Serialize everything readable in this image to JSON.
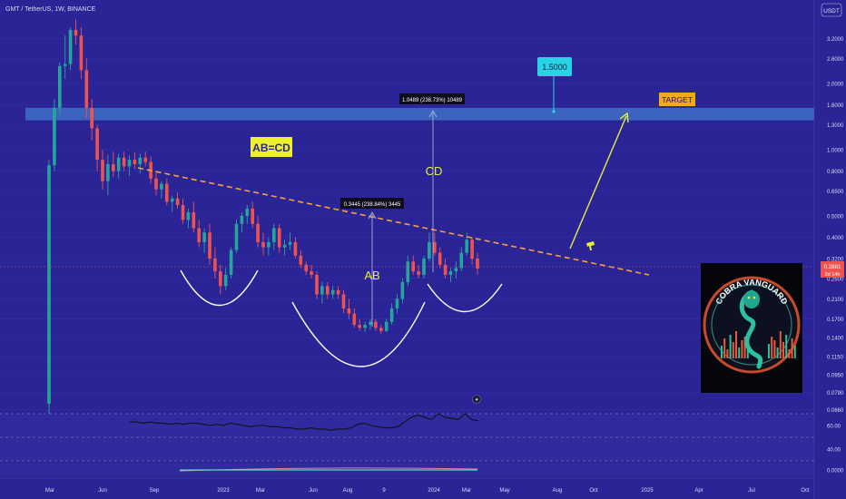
{
  "header": {
    "symbol_label": "GMT / TetherUS, 1W, BINANCE"
  },
  "colors": {
    "background": "#2a2496",
    "up": "#26a69a",
    "down": "#ef5350",
    "target_zone": "#3f6fc8",
    "trendline": "#f7a23b",
    "arrow": "#e6ee3a",
    "label_yellow": "#ecf02d",
    "label_orange": "#f5a623",
    "label_cyan": "#27d3e4"
  },
  "price_axis": {
    "currency": "USDT",
    "ticks": [
      "3.2000",
      "2.6000",
      "2.0000",
      "1.6000",
      "1.3000",
      "1.0000",
      "0.8000",
      "0.6500",
      "0.5000",
      "0.4000",
      "0.3200",
      "0.2600",
      "0.2100",
      "0.1700",
      "0.1400",
      "0.1150",
      "0.0950",
      "0.0790",
      "0.0660"
    ],
    "last_price": "0.2881",
    "countdown": "2d 14h"
  },
  "time_axis": {
    "labels": [
      "Mar",
      "Jun",
      "Sep",
      "2023",
      "Mar",
      "Jun",
      "Aug",
      "9",
      "2024",
      "Mar",
      "May",
      "Aug",
      "Oct",
      "2025",
      "Apr",
      "Jul",
      "Oct"
    ]
  },
  "indicator_axis": {
    "ticks": [
      "60.00",
      "40.00",
      "0.0000"
    ]
  },
  "annotations": {
    "pattern_label": "AB=CD",
    "ab_label": "AB",
    "cd_label": "CD",
    "ab_measure": "0.3445 (238.84%) 3445",
    "cd_measure": "1.0489 (238.73%) 10489",
    "target_price": "1.5000",
    "target_label": "TARGET"
  },
  "logo": {
    "text": "COBRA VANGUARD"
  },
  "chart_data": {
    "type": "candlestick",
    "symbol": "GMT / TetherUS",
    "interval": "1W",
    "exchange": "BINANCE",
    "y_scale": "log",
    "ylim": [
      0.06,
      4.0
    ],
    "candles": [
      {
        "o": 0.07,
        "h": 0.9,
        "l": 0.062,
        "c": 0.85
      },
      {
        "o": 0.85,
        "h": 1.7,
        "l": 0.8,
        "c": 1.55
      },
      {
        "o": 1.55,
        "h": 2.5,
        "l": 1.45,
        "c": 2.4
      },
      {
        "o": 2.4,
        "h": 3.3,
        "l": 2.1,
        "c": 2.45
      },
      {
        "o": 2.45,
        "h": 3.6,
        "l": 2.3,
        "c": 3.5
      },
      {
        "o": 3.5,
        "h": 3.9,
        "l": 3.0,
        "c": 3.3
      },
      {
        "o": 3.3,
        "h": 3.6,
        "l": 2.1,
        "c": 2.3
      },
      {
        "o": 2.3,
        "h": 2.6,
        "l": 1.4,
        "c": 1.55
      },
      {
        "o": 1.55,
        "h": 1.7,
        "l": 1.1,
        "c": 1.25
      },
      {
        "o": 1.25,
        "h": 1.3,
        "l": 0.8,
        "c": 0.9
      },
      {
        "o": 0.9,
        "h": 1.0,
        "l": 0.66,
        "c": 0.72
      },
      {
        "o": 0.72,
        "h": 0.95,
        "l": 0.62,
        "c": 0.86
      },
      {
        "o": 0.86,
        "h": 0.98,
        "l": 0.75,
        "c": 0.8
      },
      {
        "o": 0.8,
        "h": 0.96,
        "l": 0.74,
        "c": 0.92
      },
      {
        "o": 0.92,
        "h": 0.98,
        "l": 0.8,
        "c": 0.84
      },
      {
        "o": 0.84,
        "h": 0.94,
        "l": 0.76,
        "c": 0.9
      },
      {
        "o": 0.9,
        "h": 0.97,
        "l": 0.82,
        "c": 0.86
      },
      {
        "o": 0.86,
        "h": 0.96,
        "l": 0.78,
        "c": 0.92
      },
      {
        "o": 0.92,
        "h": 0.98,
        "l": 0.84,
        "c": 0.88
      },
      {
        "o": 0.88,
        "h": 0.93,
        "l": 0.7,
        "c": 0.74
      },
      {
        "o": 0.74,
        "h": 0.8,
        "l": 0.62,
        "c": 0.66
      },
      {
        "o": 0.66,
        "h": 0.72,
        "l": 0.6,
        "c": 0.7
      },
      {
        "o": 0.7,
        "h": 0.74,
        "l": 0.56,
        "c": 0.58
      },
      {
        "o": 0.58,
        "h": 0.62,
        "l": 0.52,
        "c": 0.6
      },
      {
        "o": 0.6,
        "h": 0.64,
        "l": 0.54,
        "c": 0.56
      },
      {
        "o": 0.56,
        "h": 0.6,
        "l": 0.46,
        "c": 0.48
      },
      {
        "o": 0.48,
        "h": 0.54,
        "l": 0.44,
        "c": 0.52
      },
      {
        "o": 0.52,
        "h": 0.58,
        "l": 0.42,
        "c": 0.44
      },
      {
        "o": 0.44,
        "h": 0.48,
        "l": 0.36,
        "c": 0.38
      },
      {
        "o": 0.38,
        "h": 0.44,
        "l": 0.34,
        "c": 0.42
      },
      {
        "o": 0.42,
        "h": 0.46,
        "l": 0.3,
        "c": 0.32
      },
      {
        "o": 0.32,
        "h": 0.36,
        "l": 0.26,
        "c": 0.28
      },
      {
        "o": 0.28,
        "h": 0.3,
        "l": 0.22,
        "c": 0.24
      },
      {
        "o": 0.24,
        "h": 0.29,
        "l": 0.23,
        "c": 0.27
      },
      {
        "o": 0.27,
        "h": 0.36,
        "l": 0.26,
        "c": 0.35
      },
      {
        "o": 0.35,
        "h": 0.48,
        "l": 0.34,
        "c": 0.46
      },
      {
        "o": 0.46,
        "h": 0.52,
        "l": 0.42,
        "c": 0.5
      },
      {
        "o": 0.5,
        "h": 0.56,
        "l": 0.46,
        "c": 0.54
      },
      {
        "o": 0.54,
        "h": 0.58,
        "l": 0.44,
        "c": 0.46
      },
      {
        "o": 0.46,
        "h": 0.5,
        "l": 0.36,
        "c": 0.38
      },
      {
        "o": 0.38,
        "h": 0.42,
        "l": 0.33,
        "c": 0.36
      },
      {
        "o": 0.36,
        "h": 0.4,
        "l": 0.33,
        "c": 0.38
      },
      {
        "o": 0.38,
        "h": 0.46,
        "l": 0.35,
        "c": 0.44
      },
      {
        "o": 0.44,
        "h": 0.46,
        "l": 0.34,
        "c": 0.36
      },
      {
        "o": 0.36,
        "h": 0.39,
        "l": 0.33,
        "c": 0.37
      },
      {
        "o": 0.37,
        "h": 0.42,
        "l": 0.35,
        "c": 0.38
      },
      {
        "o": 0.38,
        "h": 0.4,
        "l": 0.32,
        "c": 0.33
      },
      {
        "o": 0.33,
        "h": 0.35,
        "l": 0.29,
        "c": 0.3
      },
      {
        "o": 0.3,
        "h": 0.31,
        "l": 0.27,
        "c": 0.28
      },
      {
        "o": 0.28,
        "h": 0.3,
        "l": 0.26,
        "c": 0.27
      },
      {
        "o": 0.27,
        "h": 0.28,
        "l": 0.21,
        "c": 0.22
      },
      {
        "o": 0.22,
        "h": 0.25,
        "l": 0.2,
        "c": 0.24
      },
      {
        "o": 0.24,
        "h": 0.25,
        "l": 0.21,
        "c": 0.22
      },
      {
        "o": 0.22,
        "h": 0.24,
        "l": 0.21,
        "c": 0.23
      },
      {
        "o": 0.23,
        "h": 0.24,
        "l": 0.21,
        "c": 0.22
      },
      {
        "o": 0.22,
        "h": 0.23,
        "l": 0.18,
        "c": 0.19
      },
      {
        "o": 0.19,
        "h": 0.21,
        "l": 0.17,
        "c": 0.18
      },
      {
        "o": 0.18,
        "h": 0.19,
        "l": 0.155,
        "c": 0.16
      },
      {
        "o": 0.16,
        "h": 0.17,
        "l": 0.15,
        "c": 0.155
      },
      {
        "o": 0.155,
        "h": 0.165,
        "l": 0.148,
        "c": 0.16
      },
      {
        "o": 0.16,
        "h": 0.17,
        "l": 0.152,
        "c": 0.165
      },
      {
        "o": 0.165,
        "h": 0.17,
        "l": 0.15,
        "c": 0.155
      },
      {
        "o": 0.155,
        "h": 0.16,
        "l": 0.145,
        "c": 0.15
      },
      {
        "o": 0.15,
        "h": 0.17,
        "l": 0.148,
        "c": 0.165
      },
      {
        "o": 0.165,
        "h": 0.2,
        "l": 0.16,
        "c": 0.19
      },
      {
        "o": 0.19,
        "h": 0.22,
        "l": 0.18,
        "c": 0.21
      },
      {
        "o": 0.21,
        "h": 0.26,
        "l": 0.2,
        "c": 0.25
      },
      {
        "o": 0.25,
        "h": 0.33,
        "l": 0.24,
        "c": 0.31
      },
      {
        "o": 0.31,
        "h": 0.33,
        "l": 0.27,
        "c": 0.28
      },
      {
        "o": 0.28,
        "h": 0.3,
        "l": 0.26,
        "c": 0.27
      },
      {
        "o": 0.27,
        "h": 0.33,
        "l": 0.26,
        "c": 0.32
      },
      {
        "o": 0.32,
        "h": 0.42,
        "l": 0.31,
        "c": 0.38
      },
      {
        "o": 0.38,
        "h": 0.42,
        "l": 0.33,
        "c": 0.34
      },
      {
        "o": 0.34,
        "h": 0.36,
        "l": 0.29,
        "c": 0.3
      },
      {
        "o": 0.3,
        "h": 0.32,
        "l": 0.26,
        "c": 0.27
      },
      {
        "o": 0.27,
        "h": 0.29,
        "l": 0.25,
        "c": 0.28
      },
      {
        "o": 0.28,
        "h": 0.31,
        "l": 0.26,
        "c": 0.29
      },
      {
        "o": 0.29,
        "h": 0.36,
        "l": 0.28,
        "c": 0.34
      },
      {
        "o": 0.34,
        "h": 0.42,
        "l": 0.33,
        "c": 0.39
      },
      {
        "o": 0.39,
        "h": 0.4,
        "l": 0.3,
        "c": 0.32
      },
      {
        "o": 0.32,
        "h": 0.34,
        "l": 0.27,
        "c": 0.2881
      }
    ],
    "target_zone": [
      1.36,
      1.55
    ],
    "target_price": 1.5,
    "ab_move_pct": 238.84,
    "cd_move_pct": 238.73,
    "indicator": {
      "ticks": [
        0,
        40,
        60
      ],
      "values": [
        53,
        53,
        52,
        53,
        52,
        52,
        51,
        52,
        51,
        52,
        52,
        51,
        50,
        51,
        50,
        52,
        51,
        50,
        49,
        50,
        50,
        49,
        49,
        48,
        48,
        47,
        47,
        48,
        47,
        47,
        46,
        47,
        47,
        48,
        51,
        52,
        50,
        49,
        48,
        48,
        49,
        53,
        57,
        59,
        57,
        55,
        60,
        57,
        56,
        55,
        60,
        55,
        54
      ]
    }
  }
}
